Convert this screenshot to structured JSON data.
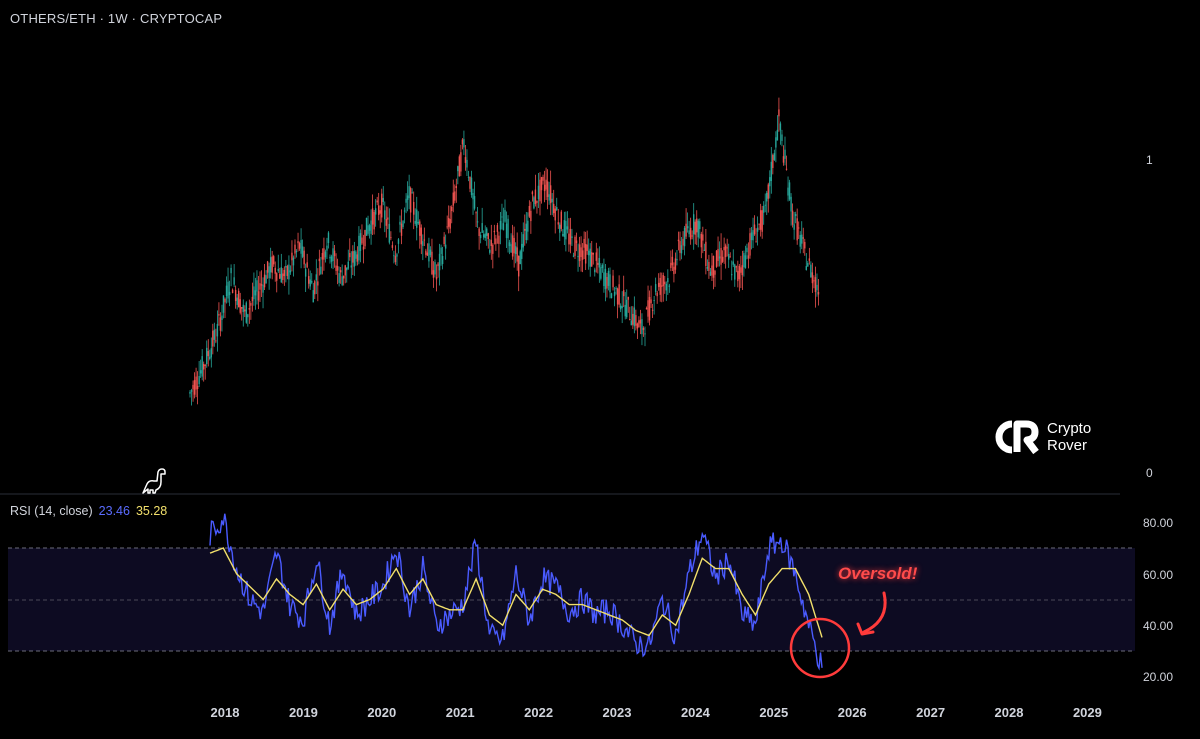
{
  "header": {
    "title": "OTHERS/ETH · 1W · CRYPTOCAP"
  },
  "price_axis": {
    "ticks": [
      "1",
      "0"
    ]
  },
  "rsi": {
    "label": "RSI (14, close)",
    "value": "23.46",
    "ma_value": "35.28"
  },
  "logo": {
    "line1": "Crypto",
    "line2": "Rover"
  },
  "annotation": {
    "text": "Oversold!"
  },
  "colors": {
    "up": "#26a69a",
    "down": "#ef5350",
    "rsi_line": "#4a5bff",
    "rsi_ma": "#f2e06b",
    "highlight": "#ff3b3b"
  },
  "chart_data": [
    {
      "type": "line",
      "title": "OTHERS/ETH · 1W · CRYPTOCAP",
      "description_series": "weekly closes, approximated",
      "x": [
        "2017-12",
        "2018-02",
        "2018-04",
        "2018-06",
        "2018-08",
        "2018-10",
        "2018-12",
        "2019-02",
        "2019-04",
        "2019-06",
        "2019-08",
        "2019-10",
        "2019-12",
        "2020-02",
        "2020-04",
        "2020-06",
        "2020-08",
        "2020-10",
        "2020-12",
        "2021-02",
        "2021-04",
        "2021-06",
        "2021-08",
        "2021-10",
        "2021-12",
        "2022-02",
        "2022-04",
        "2022-06",
        "2022-08",
        "2022-10",
        "2022-12",
        "2023-02",
        "2023-04",
        "2023-06",
        "2023-08",
        "2023-10",
        "2023-12",
        "2024-02",
        "2024-04",
        "2024-06",
        "2024-08",
        "2024-10",
        "2024-12",
        "2025-02",
        "2025-04",
        "2025-06",
        "2025-08"
      ],
      "series": [
        {
          "values": [
            0.25,
            0.34,
            0.45,
            0.62,
            0.5,
            0.58,
            0.66,
            0.62,
            0.72,
            0.58,
            0.74,
            0.62,
            0.68,
            0.78,
            0.85,
            0.7,
            0.88,
            0.75,
            0.62,
            0.8,
            1.05,
            0.78,
            0.72,
            0.8,
            0.66,
            0.86,
            0.92,
            0.8,
            0.72,
            0.7,
            0.64,
            0.58,
            0.52,
            0.45,
            0.58,
            0.62,
            0.74,
            0.8,
            0.64,
            0.7,
            0.62,
            0.74,
            0.82,
            1.12,
            0.82,
            0.68,
            0.57
          ]
        }
      ],
      "ylim": [
        0,
        1.2
      ],
      "yticks": [
        0,
        1
      ]
    },
    {
      "type": "line",
      "title": "RSI (14, close)",
      "x": [
        "2017-12",
        "2018-02",
        "2018-04",
        "2018-06",
        "2018-08",
        "2018-10",
        "2018-12",
        "2019-02",
        "2019-04",
        "2019-06",
        "2019-08",
        "2019-10",
        "2019-12",
        "2020-02",
        "2020-04",
        "2020-06",
        "2020-08",
        "2020-10",
        "2020-12",
        "2021-02",
        "2021-04",
        "2021-06",
        "2021-08",
        "2021-10",
        "2021-12",
        "2022-02",
        "2022-04",
        "2022-06",
        "2022-08",
        "2022-10",
        "2022-12",
        "2023-02",
        "2023-04",
        "2023-06",
        "2023-08",
        "2023-10",
        "2023-12",
        "2024-02",
        "2024-04",
        "2024-06",
        "2024-08",
        "2024-10",
        "2024-12",
        "2025-02",
        "2025-04",
        "2025-06",
        "2025-08"
      ],
      "series": [
        {
          "name": "RSI",
          "values": [
            75,
            82,
            62,
            50,
            45,
            68,
            48,
            42,
            66,
            40,
            62,
            44,
            50,
            55,
            70,
            46,
            62,
            40,
            44,
            48,
            72,
            36,
            34,
            60,
            42,
            58,
            55,
            45,
            50,
            44,
            46,
            40,
            33,
            32,
            50,
            36,
            60,
            76,
            58,
            66,
            44,
            40,
            70,
            73,
            60,
            40,
            23.46
          ]
        },
        {
          "name": "RSI MA",
          "values": [
            68,
            70,
            60,
            55,
            50,
            58,
            52,
            48,
            56,
            46,
            54,
            48,
            50,
            54,
            62,
            52,
            58,
            48,
            46,
            46,
            58,
            44,
            40,
            52,
            46,
            54,
            52,
            48,
            48,
            46,
            44,
            42,
            38,
            36,
            44,
            40,
            52,
            66,
            62,
            62,
            52,
            44,
            56,
            62,
            62,
            52,
            35.28
          ]
        }
      ],
      "ylim": [
        15,
        85
      ],
      "yticks": [
        20,
        40,
        60,
        80
      ],
      "bands": [
        30,
        50,
        70
      ]
    }
  ],
  "x_axis": {
    "labels": [
      "2018",
      "2019",
      "2020",
      "2021",
      "2022",
      "2023",
      "2024",
      "2025",
      "2026",
      "2027",
      "2028",
      "2029"
    ]
  },
  "rsi_axis": {
    "ticks": [
      "80.00",
      "60.00",
      "40.00",
      "20.00"
    ]
  }
}
